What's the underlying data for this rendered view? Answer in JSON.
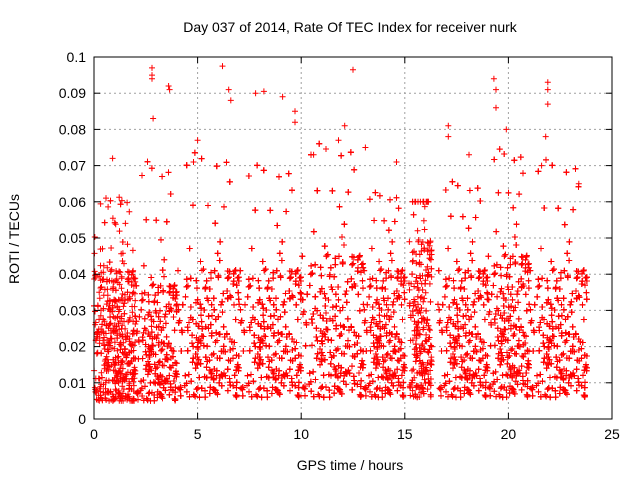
{
  "chart_data": {
    "type": "scatter",
    "title": "Day 037 of 2014, Rate Of TEC Index for receiver nurk",
    "xlabel": "GPS time / hours",
    "ylabel": "ROTI / TECUs",
    "xlim": [
      0,
      25
    ],
    "ylim": [
      0,
      0.1
    ],
    "xticks": [
      "0",
      "5",
      "10",
      "15",
      "20",
      "25"
    ],
    "yticks": [
      "0",
      "0.01",
      "0.02",
      "0.03",
      "0.04",
      "0.05",
      "0.06",
      "0.07",
      "0.08",
      "0.09",
      "0.1"
    ],
    "grid": true,
    "marker": "+",
    "color": "#ff0000",
    "data_gaps_hours": [
      [
        15.0,
        15.2
      ],
      [
        16.3,
        16.6
      ]
    ],
    "density_profile": [
      {
        "x_range": [
          0,
          2
        ],
        "y_bulk": [
          0.005,
          0.05
        ],
        "y_max": 0.072
      },
      {
        "x_range": [
          2,
          4
        ],
        "y_bulk": [
          0.005,
          0.045
        ],
        "y_max": 0.097
      },
      {
        "x_range": [
          4,
          7
        ],
        "y_bulk": [
          0.006,
          0.05
        ],
        "y_max": 0.097
      },
      {
        "x_range": [
          7,
          10
        ],
        "y_bulk": [
          0.006,
          0.05
        ],
        "y_max": 0.09
      },
      {
        "x_range": [
          10,
          13
        ],
        "y_bulk": [
          0.006,
          0.055
        ],
        "y_max": 0.097
      },
      {
        "x_range": [
          13,
          15
        ],
        "y_bulk": [
          0.006,
          0.05
        ],
        "y_max": 0.075
      },
      {
        "x_range": [
          15.2,
          16.3
        ],
        "y_bulk": [
          0.006,
          0.06
        ],
        "y_max": 0.06
      },
      {
        "x_range": [
          16.6,
          19
        ],
        "y_bulk": [
          0.006,
          0.05
        ],
        "y_max": 0.081
      },
      {
        "x_range": [
          19,
          21
        ],
        "y_bulk": [
          0.006,
          0.055
        ],
        "y_max": 0.094
      },
      {
        "x_range": [
          21,
          23.8
        ],
        "y_bulk": [
          0.006,
          0.05
        ],
        "y_max": 0.093
      }
    ],
    "outlier_points": [
      {
        "x": 2.8,
        "y": 0.097
      },
      {
        "x": 2.8,
        "y": 0.095
      },
      {
        "x": 2.8,
        "y": 0.094
      },
      {
        "x": 2.85,
        "y": 0.083
      },
      {
        "x": 3.6,
        "y": 0.092
      },
      {
        "x": 3.65,
        "y": 0.091
      },
      {
        "x": 6.2,
        "y": 0.0975
      },
      {
        "x": 6.6,
        "y": 0.088
      },
      {
        "x": 6.5,
        "y": 0.091
      },
      {
        "x": 7.8,
        "y": 0.09
      },
      {
        "x": 9.1,
        "y": 0.089
      },
      {
        "x": 9.7,
        "y": 0.085
      },
      {
        "x": 9.7,
        "y": 0.082
      },
      {
        "x": 12.5,
        "y": 0.0965
      },
      {
        "x": 12.1,
        "y": 0.081
      },
      {
        "x": 11.8,
        "y": 0.077
      },
      {
        "x": 17.1,
        "y": 0.081
      },
      {
        "x": 17.1,
        "y": 0.078
      },
      {
        "x": 19.3,
        "y": 0.094
      },
      {
        "x": 19.4,
        "y": 0.091
      },
      {
        "x": 19.4,
        "y": 0.086
      },
      {
        "x": 19.9,
        "y": 0.08
      },
      {
        "x": 21.9,
        "y": 0.093
      },
      {
        "x": 21.9,
        "y": 0.091
      },
      {
        "x": 21.9,
        "y": 0.087
      },
      {
        "x": 21.8,
        "y": 0.078
      },
      {
        "x": 21.6,
        "y": 0.07
      },
      {
        "x": 0.9,
        "y": 0.072
      },
      {
        "x": 5.0,
        "y": 0.077
      },
      {
        "x": 4.8,
        "y": 0.071
      },
      {
        "x": 18.1,
        "y": 0.073
      },
      {
        "x": 23.4,
        "y": 0.065
      },
      {
        "x": 14.6,
        "y": 0.071
      },
      {
        "x": 10.6,
        "y": 0.073
      },
      {
        "x": 13.1,
        "y": 0.075
      },
      {
        "x": 8.2,
        "y": 0.0905
      }
    ]
  }
}
